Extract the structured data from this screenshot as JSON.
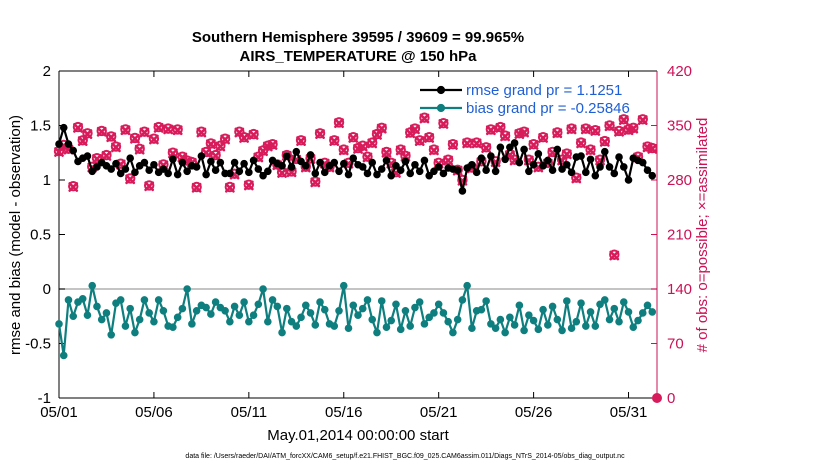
{
  "chart_data": {
    "type": "line",
    "title_line1": "Southern Hemisphere 39595 / 39609 = 99.965%",
    "title_line2": "AIRS_TEMPERATURE @ 150 hPa",
    "xlabel": "May.01,2014 00:00:00 start",
    "ylabel": "rmse and bias (model - observation)",
    "ylabel_right": "# of obs: o=possible; ×=assimilated",
    "footnote": "data file: /Users/raeder/DAI/ATM_forcXX/CAM6_setup/f.e21.FHIST_BGC.f09_025.CAM6assim.011/Diags_NTrS_2014-05/obs_diag_output.nc",
    "xlim": [
      0,
      31.5
    ],
    "ylim": [
      -1,
      2
    ],
    "ylim_right": [
      0,
      420
    ],
    "x_tick_labels": [
      "05/01",
      "05/06",
      "05/11",
      "05/16",
      "05/21",
      "05/26",
      "05/31"
    ],
    "x_tick_values": [
      0,
      5,
      10,
      15,
      20,
      25,
      30
    ],
    "y_tick_labels": [
      "-1",
      "-0.5",
      "0",
      "0.5",
      "1",
      "1.5",
      "2"
    ],
    "y_tick_values": [
      -1,
      -0.5,
      0,
      0.5,
      1,
      1.5,
      2
    ],
    "y_right_tick_labels": [
      "0",
      "70",
      "140",
      "210",
      "280",
      "350",
      "420"
    ],
    "y_right_tick_values": [
      0,
      70,
      140,
      210,
      280,
      350,
      420
    ],
    "legend_position": "top-right",
    "x": [
      0.0,
      0.25,
      0.5,
      0.75,
      1.0,
      1.25,
      1.5,
      1.75,
      2.0,
      2.25,
      2.5,
      2.75,
      3.0,
      3.25,
      3.5,
      3.75,
      4.0,
      4.25,
      4.5,
      4.75,
      5.0,
      5.25,
      5.5,
      5.75,
      6.0,
      6.25,
      6.5,
      6.75,
      7.0,
      7.25,
      7.5,
      7.75,
      8.0,
      8.25,
      8.5,
      8.75,
      9.0,
      9.25,
      9.5,
      9.75,
      10.0,
      10.25,
      10.5,
      10.75,
      11.0,
      11.25,
      11.5,
      11.75,
      12.0,
      12.25,
      12.5,
      12.75,
      13.0,
      13.25,
      13.5,
      13.75,
      14.0,
      14.25,
      14.5,
      14.75,
      15.0,
      15.25,
      15.5,
      15.75,
      16.0,
      16.25,
      16.5,
      16.75,
      17.0,
      17.25,
      17.5,
      17.75,
      18.0,
      18.25,
      18.5,
      18.75,
      19.0,
      19.25,
      19.5,
      19.75,
      20.0,
      20.25,
      20.5,
      20.75,
      21.0,
      21.25,
      21.5,
      21.75,
      22.0,
      22.25,
      22.5,
      22.75,
      23.0,
      23.25,
      23.5,
      23.75,
      24.0,
      24.25,
      24.5,
      24.75,
      25.0,
      25.25,
      25.5,
      25.75,
      26.0,
      26.25,
      26.5,
      26.75,
      27.0,
      27.25,
      27.5,
      27.75,
      28.0,
      28.25,
      28.5,
      28.75,
      29.0,
      29.25,
      29.5,
      29.75,
      30.0,
      30.25,
      30.5,
      30.75,
      31.0,
      31.25
    ],
    "series": [
      {
        "name": "rmse grand pr = 1.1251",
        "axis": "left",
        "color": "#000000",
        "marker": "circle",
        "values": [
          1.33,
          1.48,
          1.33,
          1.27,
          1.17,
          1.2,
          1.22,
          1.08,
          1.12,
          1.16,
          1.13,
          1.1,
          1.15,
          1.06,
          1.1,
          1.2,
          1.07,
          1.13,
          1.16,
          1.09,
          1.14,
          1.07,
          1.1,
          1.06,
          1.19,
          1.05,
          1.16,
          1.08,
          1.13,
          1.12,
          1.22,
          1.05,
          1.17,
          1.09,
          1.16,
          1.06,
          1.06,
          1.16,
          1.08,
          1.15,
          1.07,
          1.18,
          1.1,
          1.04,
          1.08,
          1.18,
          1.15,
          1.13,
          1.22,
          1.12,
          1.26,
          1.17,
          1.13,
          1.23,
          1.06,
          1.16,
          1.07,
          1.13,
          1.16,
          1.08,
          1.15,
          1.05,
          1.2,
          1.14,
          1.12,
          1.06,
          1.16,
          1.05,
          1.1,
          1.18,
          1.04,
          1.13,
          1.09,
          1.17,
          1.06,
          1.14,
          1.08,
          1.18,
          1.04,
          1.08,
          1.12,
          1.06,
          1.11,
          1.1,
          1.09,
          0.9,
          1.11,
          1.14,
          1.07,
          1.2,
          1.09,
          1.22,
          1.08,
          1.3,
          1.19,
          1.3,
          1.34,
          1.16,
          1.28,
          1.08,
          1.14,
          1.24,
          1.13,
          1.18,
          1.09,
          1.28,
          1.1,
          1.14,
          1.07,
          1.21,
          1.22,
          1.07,
          1.19,
          1.04,
          1.12,
          1.26,
          1.12,
          1.06,
          1.21,
          1.12,
          1.0,
          1.2,
          1.18,
          1.16,
          1.09,
          1.04
        ]
      },
      {
        "name": "bias grand pr = -0.25846",
        "axis": "left",
        "color": "#0e7f7e",
        "marker": "circle",
        "values": [
          -0.32,
          -0.61,
          -0.1,
          -0.25,
          -0.12,
          -0.09,
          -0.24,
          0.03,
          -0.16,
          -0.28,
          -0.22,
          -0.42,
          -0.13,
          -0.1,
          -0.34,
          -0.18,
          -0.4,
          -0.28,
          -0.1,
          -0.22,
          -0.3,
          -0.1,
          -0.2,
          -0.34,
          -0.35,
          -0.26,
          -0.18,
          0.0,
          -0.32,
          -0.2,
          -0.15,
          -0.17,
          -0.23,
          -0.12,
          -0.17,
          -0.2,
          -0.3,
          -0.16,
          -0.24,
          -0.12,
          -0.3,
          -0.24,
          -0.14,
          0.0,
          -0.3,
          -0.1,
          -0.16,
          -0.4,
          -0.18,
          -0.3,
          -0.34,
          -0.26,
          -0.15,
          -0.22,
          -0.33,
          -0.12,
          -0.19,
          -0.32,
          -0.34,
          -0.2,
          0.03,
          -0.36,
          -0.15,
          -0.24,
          -0.18,
          -0.1,
          -0.28,
          -0.4,
          -0.11,
          -0.35,
          -0.29,
          -0.14,
          -0.37,
          -0.2,
          -0.34,
          -0.17,
          -0.12,
          -0.32,
          -0.26,
          -0.22,
          -0.14,
          -0.22,
          -0.3,
          -0.4,
          -0.28,
          -0.1,
          0.03,
          -0.36,
          -0.2,
          -0.19,
          -0.11,
          -0.32,
          -0.36,
          -0.28,
          -0.4,
          -0.26,
          -0.33,
          -0.15,
          -0.38,
          -0.24,
          -0.29,
          -0.37,
          -0.19,
          -0.33,
          -0.16,
          -0.28,
          -0.38,
          -0.11,
          -0.36,
          -0.3,
          -0.13,
          -0.34,
          -0.21,
          -0.34,
          -0.14,
          -0.1,
          -0.28,
          -0.18,
          -0.3,
          -0.12,
          -0.21,
          -0.35,
          -0.29,
          -0.22,
          -0.15,
          -0.21
        ]
      },
      {
        "name": "# of obs assimilated",
        "axis": "right",
        "color": "#d81b5a",
        "marker": "x",
        "values": [
          316,
          324,
          319,
          271,
          347,
          330,
          339,
          296,
          307,
          342,
          311,
          335,
          322,
          300,
          344,
          281,
          333,
          319,
          341,
          272,
          332,
          347,
          299,
          345,
          314,
          344,
          309,
          304,
          302,
          270,
          341,
          315,
          326,
          311,
          323,
          332,
          270,
          287,
          341,
          334,
          273,
          338,
          309,
          317,
          323,
          325,
          299,
          289,
          311,
          290,
          306,
          330,
          296,
          307,
          277,
          339,
          301,
          296,
          330,
          353,
          318,
          301,
          334,
          320,
          323,
          309,
          327,
          338,
          346,
          315,
          301,
          289,
          318,
          310,
          340,
          345,
          330,
          359,
          334,
          318,
          301,
          352,
          305,
          325,
          292,
          279,
          327,
          295,
          327,
          303,
          321,
          344,
          303,
          347,
          336,
          312,
          305,
          339,
          341,
          305,
          325,
          296,
          334,
          301,
          315,
          340,
          305,
          313,
          345,
          282,
          327,
          345,
          318,
          343,
          305,
          329,
          349,
          183,
          342,
          357,
          344,
          346,
          309,
          357,
          322,
          320
        ]
      },
      {
        "name": "# of obs possible",
        "axis": "right",
        "color": "#d81b5a",
        "marker": "o",
        "values": [
          317,
          325,
          320,
          272,
          348,
          331,
          340,
          297,
          308,
          343,
          312,
          336,
          323,
          301,
          345,
          282,
          334,
          320,
          342,
          273,
          333,
          348,
          300,
          346,
          315,
          345,
          310,
          305,
          303,
          271,
          342,
          316,
          327,
          312,
          324,
          333,
          271,
          288,
          342,
          335,
          274,
          339,
          310,
          318,
          324,
          326,
          300,
          290,
          312,
          291,
          307,
          331,
          297,
          308,
          278,
          340,
          302,
          297,
          331,
          354,
          319,
          302,
          335,
          321,
          324,
          310,
          328,
          339,
          347,
          316,
          302,
          290,
          319,
          311,
          341,
          346,
          331,
          360,
          335,
          319,
          302,
          353,
          306,
          326,
          293,
          280,
          328,
          296,
          328,
          304,
          322,
          345,
          304,
          348,
          337,
          313,
          306,
          340,
          342,
          306,
          326,
          297,
          335,
          302,
          316,
          341,
          306,
          314,
          346,
          283,
          328,
          346,
          319,
          344,
          306,
          330,
          350,
          184,
          343,
          358,
          345,
          347,
          310,
          358,
          323,
          321
        ]
      }
    ],
    "extra_point": {
      "x": 31.5,
      "y_right": 0
    }
  }
}
